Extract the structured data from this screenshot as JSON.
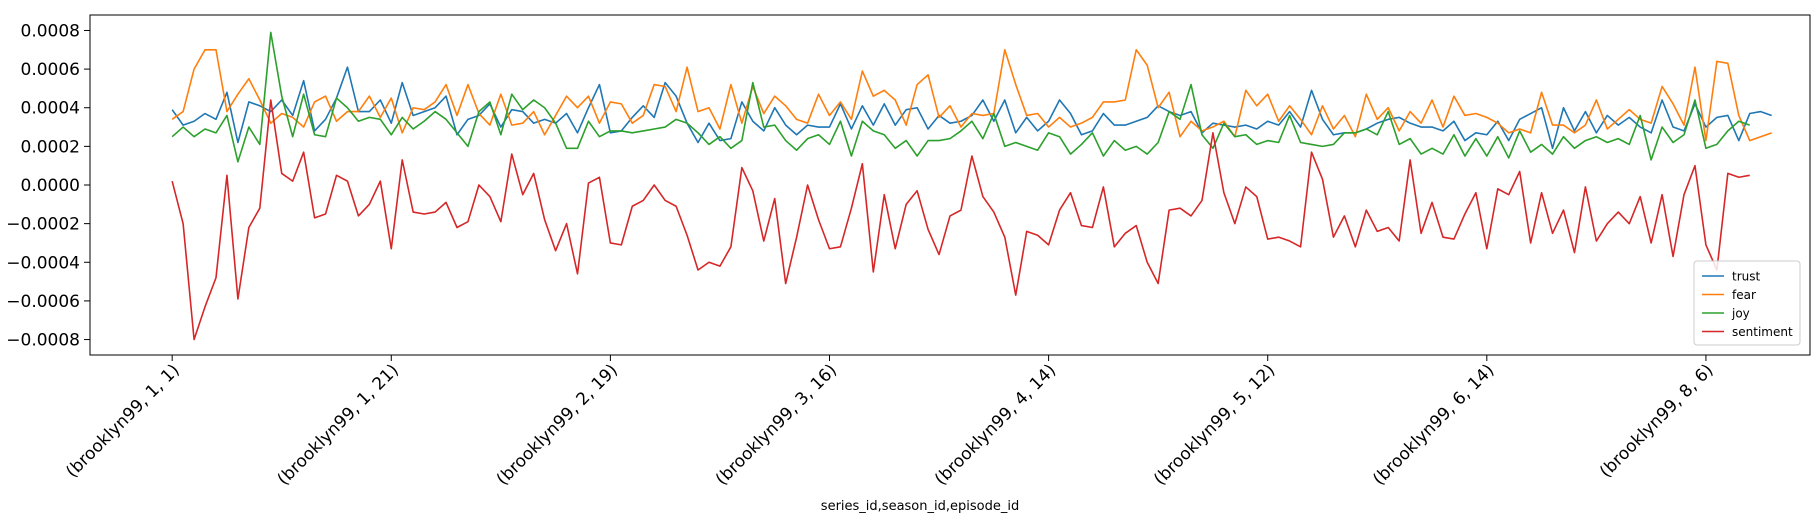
{
  "chart_data": {
    "type": "line",
    "xlabel": "series_id,season_id,episode_id",
    "ylabel": "",
    "ylim": [
      -0.00088,
      0.00088
    ],
    "yticks": [
      -0.0008,
      -0.0006,
      -0.0004,
      -0.0002,
      0.0,
      0.0002,
      0.0004,
      0.0006,
      0.0008
    ],
    "ytick_labels": [
      "−0.0008",
      "−0.0006",
      "−0.0004",
      "−0.0002",
      "0.0000",
      "0.0002",
      "0.0004",
      "0.0006",
      "0.0008"
    ],
    "xlim": [
      -7.5,
      149.5
    ],
    "xtick_positions": [
      0,
      20,
      40,
      60,
      80,
      100,
      120,
      140
    ],
    "xtick_labels": [
      "(brooklyn99, 1, 1)",
      "(brooklyn99, 1, 21)",
      "(brooklyn99, 2, 19)",
      "(brooklyn99, 3, 16)",
      "(brooklyn99, 4, 14)",
      "(brooklyn99, 5, 12)",
      "(brooklyn99, 6, 14)",
      "(brooklyn99, 8, 6)"
    ],
    "grid": false,
    "legend_position": "lower-right",
    "series": [
      {
        "name": "trust",
        "color": "#1f77b4",
        "values": [
          0.00039,
          0.00031,
          0.00033,
          0.00037,
          0.00034,
          0.00048,
          0.00022,
          0.00043,
          0.00041,
          0.00038,
          0.00044,
          0.00036,
          0.00054,
          0.00028,
          0.00034,
          0.00045,
          0.00061,
          0.00038,
          0.00038,
          0.00044,
          0.00032,
          0.00053,
          0.00036,
          0.00038,
          0.0004,
          0.00046,
          0.00026,
          0.00034,
          0.00036,
          0.00042,
          0.0003,
          0.00039,
          0.00038,
          0.00032,
          0.00034,
          0.00032,
          0.00037,
          0.00027,
          0.0004,
          0.00052,
          0.00027,
          0.00028,
          0.00035,
          0.00041,
          0.00035,
          0.00053,
          0.00046,
          0.00032,
          0.00022,
          0.00032,
          0.00023,
          0.00024,
          0.00043,
          0.00033,
          0.00028,
          0.0004,
          0.00031,
          0.00026,
          0.00031,
          0.0003,
          0.0003,
          0.00042,
          0.00029,
          0.00041,
          0.00031,
          0.00042,
          0.00031,
          0.00039,
          0.0004,
          0.00029,
          0.00036,
          0.00032,
          0.00033,
          0.00036,
          0.00044,
          0.00033,
          0.00044,
          0.00027,
          0.00035,
          0.00028,
          0.00033,
          0.00044,
          0.00037,
          0.00026,
          0.00028,
          0.00037,
          0.00031,
          0.00031,
          0.00033,
          0.00035,
          0.00041,
          0.00038,
          0.00036,
          0.00038,
          0.00027,
          0.00032,
          0.00031,
          0.0003,
          0.00031,
          0.00029,
          0.00033,
          0.00031,
          0.00038,
          0.0003,
          0.00049,
          0.00034,
          0.00026,
          0.00027,
          0.00027,
          0.00029,
          0.00032,
          0.00034,
          0.00035,
          0.00032,
          0.0003,
          0.0003,
          0.00028,
          0.00033,
          0.00023,
          0.00027,
          0.00026,
          0.00033,
          0.00023,
          0.00034,
          0.00037,
          0.0004,
          0.00019,
          0.0004,
          0.00028,
          0.00038,
          0.00027,
          0.00036,
          0.00031,
          0.00035,
          0.0003,
          0.00027,
          0.00044,
          0.0003,
          0.00028,
          0.00042,
          0.0003,
          0.00035,
          0.00036,
          0.00023,
          0.00037,
          0.00038,
          0.00036
        ]
      },
      {
        "name": "fear",
        "color": "#ff7f0e",
        "values": [
          0.00034,
          0.00038,
          0.0006,
          0.0007,
          0.0007,
          0.00038,
          0.00047,
          0.00055,
          0.00044,
          0.00032,
          0.00037,
          0.00035,
          0.0003,
          0.00043,
          0.00046,
          0.00033,
          0.00038,
          0.00038,
          0.00046,
          0.00035,
          0.00045,
          0.00027,
          0.0004,
          0.00039,
          0.00043,
          0.00052,
          0.00036,
          0.00052,
          0.00037,
          0.00031,
          0.00047,
          0.00031,
          0.00032,
          0.00038,
          0.00026,
          0.00036,
          0.00046,
          0.0004,
          0.00046,
          0.00032,
          0.00043,
          0.00042,
          0.00032,
          0.00036,
          0.00052,
          0.00051,
          0.00038,
          0.00061,
          0.00038,
          0.0004,
          0.00029,
          0.00052,
          0.00032,
          0.00051,
          0.00037,
          0.00046,
          0.00041,
          0.00034,
          0.00032,
          0.00047,
          0.00036,
          0.00043,
          0.00034,
          0.00059,
          0.00046,
          0.00049,
          0.00044,
          0.00031,
          0.00052,
          0.00057,
          0.00035,
          0.00041,
          0.0003,
          0.00037,
          0.00036,
          0.00037,
          0.0007,
          0.00052,
          0.00036,
          0.00037,
          0.0003,
          0.00035,
          0.0003,
          0.00032,
          0.00035,
          0.00043,
          0.00043,
          0.00044,
          0.0007,
          0.00062,
          0.0004,
          0.00048,
          0.00025,
          0.00033,
          0.00028,
          0.0003,
          0.00033,
          0.00025,
          0.00049,
          0.00041,
          0.00047,
          0.00033,
          0.00041,
          0.00034,
          0.00026,
          0.00041,
          0.00029,
          0.00036,
          0.00025,
          0.00047,
          0.00034,
          0.0004,
          0.00028,
          0.00038,
          0.00032,
          0.00044,
          0.0003,
          0.00046,
          0.00036,
          0.00037,
          0.00035,
          0.00032,
          0.00027,
          0.00029,
          0.00027,
          0.00048,
          0.00031,
          0.00031,
          0.00027,
          0.00031,
          0.00044,
          0.00029,
          0.00034,
          0.00039,
          0.00034,
          0.00032,
          0.00051,
          0.00042,
          0.00031,
          0.00061,
          0.00023,
          0.00064,
          0.00063,
          0.00036,
          0.00023,
          0.00025,
          0.00027
        ]
      },
      {
        "name": "joy",
        "color": "#2ca02c",
        "values": [
          0.00025,
          0.0003,
          0.00025,
          0.00029,
          0.00027,
          0.00036,
          0.00012,
          0.0003,
          0.00021,
          0.00079,
          0.00046,
          0.00025,
          0.00047,
          0.00026,
          0.00025,
          0.00045,
          0.0004,
          0.00033,
          0.00035,
          0.00034,
          0.00026,
          0.00035,
          0.00029,
          0.00033,
          0.00038,
          0.00034,
          0.00027,
          0.0002,
          0.00038,
          0.00043,
          0.00026,
          0.00047,
          0.00039,
          0.00044,
          0.0004,
          0.00032,
          0.00019,
          0.00019,
          0.00033,
          0.00025,
          0.00028,
          0.00028,
          0.00027,
          0.00028,
          0.00029,
          0.0003,
          0.00034,
          0.00032,
          0.00027,
          0.00021,
          0.00025,
          0.00019,
          0.00023,
          0.00053,
          0.0003,
          0.00031,
          0.00023,
          0.00018,
          0.00024,
          0.00026,
          0.00021,
          0.00033,
          0.00015,
          0.00033,
          0.00028,
          0.00026,
          0.00019,
          0.00023,
          0.00015,
          0.00023,
          0.00023,
          0.00024,
          0.00028,
          0.00033,
          0.00024,
          0.00037,
          0.0002,
          0.00022,
          0.0002,
          0.00018,
          0.00027,
          0.00025,
          0.00016,
          0.00021,
          0.00027,
          0.00015,
          0.00023,
          0.00018,
          0.0002,
          0.00016,
          0.00022,
          0.00038,
          0.00034,
          0.00052,
          0.00026,
          0.00019,
          0.00032,
          0.00025,
          0.00026,
          0.00021,
          0.00023,
          0.00022,
          0.00036,
          0.00022,
          0.00021,
          0.0002,
          0.00021,
          0.00027,
          0.00027,
          0.00029,
          0.00026,
          0.00038,
          0.00021,
          0.00024,
          0.00016,
          0.00019,
          0.00016,
          0.00026,
          0.00015,
          0.00024,
          0.00015,
          0.00025,
          0.00014,
          0.00028,
          0.00017,
          0.00021,
          0.00016,
          0.00025,
          0.00019,
          0.00023,
          0.00025,
          0.00022,
          0.00024,
          0.00021,
          0.00036,
          0.00013,
          0.0003,
          0.00022,
          0.00026,
          0.00044,
          0.00019,
          0.00021,
          0.00028,
          0.00033,
          0.00031
        ]
      },
      {
        "name": "sentiment",
        "color": "#d62728",
        "values": [
          2e-05,
          -0.0002,
          -0.0008,
          -0.00063,
          -0.00048,
          5e-05,
          -0.00059,
          -0.00022,
          -0.00012,
          0.00044,
          6e-05,
          2e-05,
          0.00017,
          -0.00017,
          -0.00015,
          5e-05,
          2e-05,
          -0.00016,
          -0.0001,
          2e-05,
          -0.00033,
          0.00013,
          -0.00014,
          -0.00015,
          -0.00014,
          -9e-05,
          -0.00022,
          -0.00019,
          0.0,
          -6e-05,
          -0.00019,
          0.00016,
          -5e-05,
          6e-05,
          -0.00018,
          -0.00034,
          -0.0002,
          -0.00046,
          1e-05,
          4e-05,
          -0.0003,
          -0.00031,
          -0.00011,
          -8e-05,
          0.0,
          -8e-05,
          -0.00011,
          -0.00026,
          -0.00044,
          -0.0004,
          -0.00042,
          -0.00032,
          9e-05,
          -3e-05,
          -0.00029,
          -7e-05,
          -0.00051,
          -0.00027,
          0.0,
          -0.00018,
          -0.00033,
          -0.00032,
          -0.00012,
          0.00011,
          -0.00045,
          -5e-05,
          -0.00033,
          -0.0001,
          -3e-05,
          -0.00023,
          -0.00036,
          -0.00016,
          -0.00013,
          0.00015,
          -6e-05,
          -0.00014,
          -0.00027,
          -0.00057,
          -0.00024,
          -0.00026,
          -0.00031,
          -0.00013,
          -4e-05,
          -0.00021,
          -0.00022,
          -1e-05,
          -0.00032,
          -0.00025,
          -0.00021,
          -0.0004,
          -0.00051,
          -0.00013,
          -0.00012,
          -0.00016,
          -8e-05,
          0.00027,
          -4e-05,
          -0.0002,
          -1e-05,
          -6e-05,
          -0.00028,
          -0.00027,
          -0.00029,
          -0.00032,
          0.00017,
          3e-05,
          -0.00027,
          -0.00016,
          -0.00032,
          -0.00013,
          -0.00024,
          -0.00022,
          -0.00029,
          0.00013,
          -0.00025,
          -9e-05,
          -0.00027,
          -0.00028,
          -0.00015,
          -4e-05,
          -0.00033,
          -2e-05,
          -5e-05,
          7e-05,
          -0.0003,
          -4e-05,
          -0.00025,
          -0.00013,
          -0.00035,
          -1e-05,
          -0.00029,
          -0.0002,
          -0.00014,
          -0.0002,
          -6e-05,
          -0.0003,
          -5e-05,
          -0.00037,
          -5e-05,
          0.0001,
          -0.00031,
          -0.00044,
          6e-05,
          4e-05,
          5e-05
        ]
      }
    ]
  }
}
